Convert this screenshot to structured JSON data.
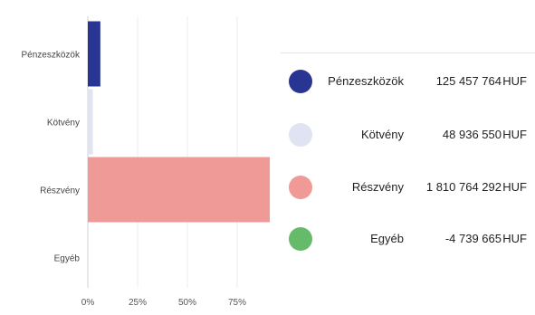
{
  "chart_data": {
    "type": "bar",
    "orientation": "horizontal",
    "categories": [
      "Pénzeszközök",
      "Kötvény",
      "Részvény",
      "Egyéb"
    ],
    "series": [
      {
        "values": [
          6.3,
          2.5,
          91.4,
          -0.2
        ]
      }
    ],
    "colors": [
      "#283593",
      "#dfe3f2",
      "#ef9a96",
      "#66bb6a"
    ],
    "x_ticks": [
      "0%",
      "25%",
      "50%",
      "75%"
    ],
    "xlim": [
      0,
      100
    ],
    "grid": true,
    "legend": {
      "placement": "right",
      "items": [
        {
          "label": "Pénzeszközök",
          "value": "125 457 764",
          "currency": "HUF"
        },
        {
          "label": "Kötvény",
          "value": "48 936 550",
          "currency": "HUF"
        },
        {
          "label": "Részvény",
          "value": "1 810 764 292",
          "currency": "HUF"
        },
        {
          "label": "Egyéb",
          "value": "-4 739 665",
          "currency": "HUF"
        }
      ]
    }
  }
}
